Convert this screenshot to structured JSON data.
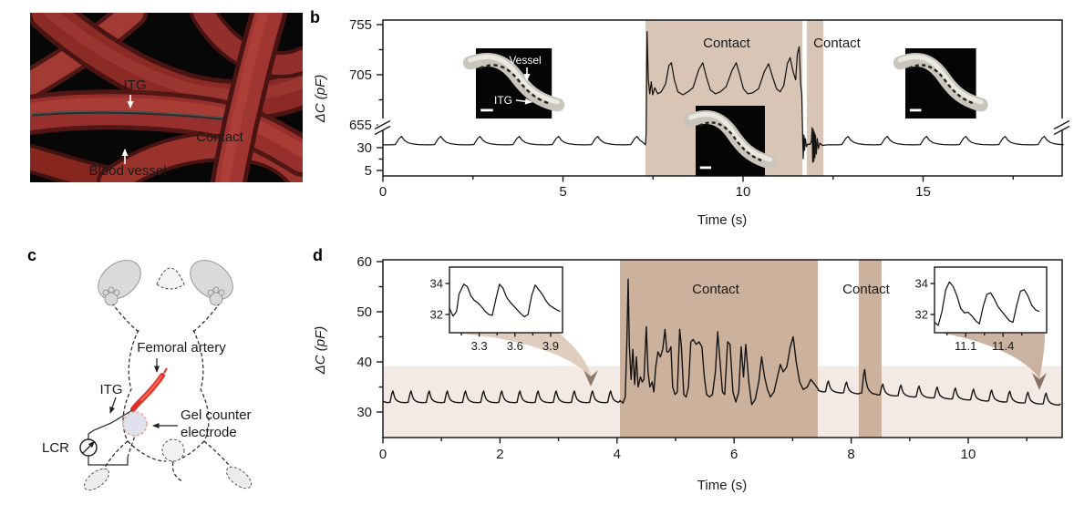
{
  "panels": {
    "a": {
      "letter": "a",
      "itg": "ITG",
      "contact": "Contact",
      "blood_vessel": "Blood vessel"
    },
    "b": {
      "letter": "b",
      "inset_vessel": "Vessel",
      "inset_itg": "ITG"
    },
    "c": {
      "letter": "c",
      "femoral_artery": "Femoral artery",
      "itg": "ITG",
      "gel_line1": "Gel counter",
      "gel_line2": "electrode",
      "lcr": "LCR"
    },
    "d": {
      "letter": "d"
    }
  },
  "colors": {
    "contact_fill_b": "#d9c5b5",
    "contact_fill_d": "#ccb19d",
    "band_fill": "#f3eae6",
    "wedge_left": "#dcc8b6",
    "wedge_right": "#c4ab96",
    "arrow_left": "#8e7a6a",
    "arrow_right": "#8a7363",
    "trace": "#141414",
    "contact_dot": "#dc8a3c"
  },
  "chart_data": [
    {
      "id": "b",
      "type": "line",
      "xlabel": "Time (s)",
      "ylabel": "ΔC (pF)",
      "units": "pF",
      "x_range": [
        0,
        18.9
      ],
      "x_major_ticks": [
        0,
        5,
        10,
        15
      ],
      "x_minor_ticks": [
        2.5,
        7.5,
        12.5,
        17.5
      ],
      "y_axis_break": true,
      "y_lower_ticks": [
        5,
        30
      ],
      "y_lower_minor_ticks": [
        17.5
      ],
      "y_upper_ticks": [
        655,
        705,
        755
      ],
      "y_upper_minor_ticks": [
        680,
        730
      ],
      "contact_regions_s": [
        [
          7.29,
          11.65
        ],
        [
          11.77,
          12.23
        ]
      ],
      "contact_labels": [
        "Contact",
        "Contact"
      ],
      "baseline_segments": [
        {
          "t0": 0,
          "t1": 7.29,
          "base": 32.8,
          "amp": 9.5,
          "period": 1.09,
          "first_peak": 0.55
        },
        {
          "t0": 12.35,
          "t1": 18.9,
          "base": 32.8,
          "amp": 9.5,
          "period": 1.09,
          "first_peak": 12.95
        }
      ],
      "event_trace": [
        [
          7.29,
          34
        ],
        [
          7.31,
          45
        ],
        [
          7.335,
          748
        ],
        [
          7.37,
          700
        ],
        [
          7.41,
          686
        ],
        [
          7.45,
          698
        ],
        [
          7.49,
          685
        ],
        [
          7.55,
          692
        ],
        [
          7.63,
          686
        ],
        [
          7.73,
          688
        ],
        [
          7.85,
          696
        ],
        [
          7.94,
          714
        ],
        [
          8.01,
          717
        ],
        [
          8.09,
          700
        ],
        [
          8.19,
          688
        ],
        [
          8.33,
          685
        ],
        [
          8.47,
          688
        ],
        [
          8.61,
          692
        ],
        [
          8.77,
          710
        ],
        [
          8.88,
          717
        ],
        [
          8.98,
          703
        ],
        [
          9.09,
          690
        ],
        [
          9.23,
          686
        ],
        [
          9.37,
          688
        ],
        [
          9.53,
          693
        ],
        [
          9.69,
          709
        ],
        [
          9.81,
          717
        ],
        [
          9.91,
          705
        ],
        [
          10.01,
          691
        ],
        [
          10.13,
          686
        ],
        [
          10.27,
          687
        ],
        [
          10.43,
          691
        ],
        [
          10.59,
          708
        ],
        [
          10.71,
          716
        ],
        [
          10.81,
          704
        ],
        [
          10.93,
          691
        ],
        [
          11.03,
          688
        ],
        [
          11.13,
          694
        ],
        [
          11.23,
          716
        ],
        [
          11.31,
          722
        ],
        [
          11.39,
          708
        ],
        [
          11.46,
          700
        ],
        [
          11.51,
          726
        ],
        [
          11.56,
          733
        ],
        [
          11.6,
          695
        ],
        [
          11.63,
          686
        ],
        [
          11.655,
          42
        ],
        [
          11.67,
          18
        ],
        [
          11.69,
          44
        ],
        [
          11.71,
          27
        ],
        [
          11.73,
          40
        ],
        [
          11.76,
          31
        ],
        [
          11.8,
          34
        ],
        [
          11.86,
          33.5
        ],
        [
          11.9,
          37
        ],
        [
          11.92,
          52
        ],
        [
          11.935,
          14
        ],
        [
          11.95,
          50
        ],
        [
          11.965,
          15
        ],
        [
          11.98,
          47
        ],
        [
          11.995,
          19
        ],
        [
          12.01,
          44
        ],
        [
          12.035,
          23
        ],
        [
          12.06,
          40
        ],
        [
          12.09,
          29
        ],
        [
          12.13,
          35
        ],
        [
          12.2,
          32.5
        ],
        [
          12.32,
          33
        ]
      ]
    },
    {
      "id": "d",
      "type": "line",
      "xlabel": "Time (s)",
      "ylabel": "ΔC (pF)",
      "units": "pF",
      "x_range": [
        0,
        11.6
      ],
      "x_major_ticks": [
        0,
        2,
        4,
        6,
        8,
        10
      ],
      "x_minor_ticks": [
        1,
        3,
        5,
        7,
        9,
        11
      ],
      "y_ticks": [
        30,
        40,
        50,
        60
      ],
      "y_minor_ticks": [
        35,
        45,
        55
      ],
      "y_range": [
        25,
        60
      ],
      "band_pF": [
        25,
        39.2
      ],
      "contact_regions_s": [
        [
          4.05,
          7.43
        ],
        [
          8.13,
          8.52
        ]
      ],
      "contact_labels": [
        "Contact",
        "Contact"
      ],
      "baseline_pre": {
        "t0": 0,
        "t1": 4.05,
        "base": 31.8,
        "amp": 2.4,
        "period": 0.31,
        "first_peak": 0.18
      },
      "contact_trace": [
        [
          4.05,
          32.3
        ],
        [
          4.1,
          31.8
        ],
        [
          4.14,
          33
        ],
        [
          4.17,
          45
        ],
        [
          4.19,
          56.5
        ],
        [
          4.21,
          43
        ],
        [
          4.24,
          36.5
        ],
        [
          4.27,
          42.5
        ],
        [
          4.3,
          35.5
        ],
        [
          4.33,
          41
        ],
        [
          4.36,
          35
        ],
        [
          4.4,
          37
        ],
        [
          4.43,
          36
        ],
        [
          4.46,
          36.5
        ],
        [
          4.5,
          47
        ],
        [
          4.53,
          38
        ],
        [
          4.56,
          35
        ],
        [
          4.6,
          36
        ],
        [
          4.63,
          34
        ],
        [
          4.66,
          39
        ],
        [
          4.7,
          42
        ],
        [
          4.74,
          41
        ],
        [
          4.78,
          42.5
        ],
        [
          4.82,
          46.5
        ],
        [
          4.85,
          42
        ],
        [
          4.88,
          42
        ],
        [
          4.92,
          43
        ],
        [
          4.95,
          35
        ],
        [
          4.99,
          33.5
        ],
        [
          5.03,
          34
        ],
        [
          5.07,
          46.5
        ],
        [
          5.1,
          43
        ],
        [
          5.14,
          33.5
        ],
        [
          5.18,
          33
        ],
        [
          5.22,
          35
        ],
        [
          5.26,
          44
        ],
        [
          5.3,
          44.5
        ],
        [
          5.35,
          43.5
        ],
        [
          5.4,
          44
        ],
        [
          5.45,
          43
        ],
        [
          5.49,
          37
        ],
        [
          5.53,
          33.5
        ],
        [
          5.58,
          33
        ],
        [
          5.63,
          33.5
        ],
        [
          5.68,
          38
        ],
        [
          5.72,
          46
        ],
        [
          5.76,
          40
        ],
        [
          5.8,
          34
        ],
        [
          5.84,
          33.5
        ],
        [
          5.89,
          44
        ],
        [
          5.93,
          43.5
        ],
        [
          5.98,
          34
        ],
        [
          6.03,
          32
        ],
        [
          6.08,
          34
        ],
        [
          6.12,
          43
        ],
        [
          6.16,
          37
        ],
        [
          6.2,
          43.5
        ],
        [
          6.25,
          36
        ],
        [
          6.3,
          31.5
        ],
        [
          6.36,
          32.5
        ],
        [
          6.42,
          36
        ],
        [
          6.47,
          41
        ],
        [
          6.52,
          37
        ],
        [
          6.57,
          34.5
        ],
        [
          6.62,
          33
        ],
        [
          6.68,
          34
        ],
        [
          6.74,
          37
        ],
        [
          6.79,
          39.5
        ],
        [
          6.84,
          38
        ],
        [
          6.9,
          39
        ],
        [
          6.96,
          43
        ],
        [
          7.01,
          45
        ],
        [
          7.06,
          40
        ],
        [
          7.12,
          36
        ],
        [
          7.18,
          34.5
        ],
        [
          7.25,
          35
        ],
        [
          7.31,
          36.5
        ],
        [
          7.38,
          35.5
        ],
        [
          7.44,
          34.5
        ]
      ],
      "baseline_post": {
        "t0": 7.44,
        "t1": 11.58,
        "base_start": 34.0,
        "base_end": 31.3,
        "amp": 2.3,
        "period": 0.31,
        "first_peak": 7.62,
        "specials": [
          {
            "t": 8.24,
            "amp": 5.0
          }
        ]
      },
      "insets": [
        {
          "y_ticks": [
            34,
            32
          ],
          "x_ticks": [
            3.3,
            3.6,
            3.9
          ],
          "x_minor_ticks": [
            3.15,
            3.45,
            3.75
          ],
          "points": [
            [
              3.05,
              32.4
            ],
            [
              3.08,
              31.9
            ],
            [
              3.11,
              32.2
            ],
            [
              3.13,
              33.3
            ],
            [
              3.17,
              33.95
            ],
            [
              3.2,
              33.8
            ],
            [
              3.23,
              33.2
            ],
            [
              3.26,
              32.9
            ],
            [
              3.29,
              32.75
            ],
            [
              3.32,
              32.5
            ],
            [
              3.35,
              32.2
            ],
            [
              3.38,
              32.0
            ],
            [
              3.41,
              31.95
            ],
            [
              3.44,
              33.0
            ],
            [
              3.47,
              33.95
            ],
            [
              3.5,
              33.7
            ],
            [
              3.53,
              33.1
            ],
            [
              3.56,
              32.8
            ],
            [
              3.59,
              32.55
            ],
            [
              3.62,
              32.3
            ],
            [
              3.65,
              32.05
            ],
            [
              3.68,
              31.85
            ],
            [
              3.71,
              32.0
            ],
            [
              3.74,
              33.2
            ],
            [
              3.77,
              33.9
            ],
            [
              3.8,
              33.6
            ],
            [
              3.83,
              33.3
            ],
            [
              3.86,
              32.9
            ],
            [
              3.89,
              32.6
            ],
            [
              3.92,
              32.45
            ],
            [
              3.95,
              32.3
            ],
            [
              3.98,
              32.2
            ]
          ]
        },
        {
          "y_ticks": [
            34,
            32
          ],
          "x_ticks": [
            11.1,
            11.4
          ],
          "x_minor_ticks": [
            10.95,
            11.25,
            11.55
          ],
          "points": [
            [
              10.85,
              31.5
            ],
            [
              10.88,
              31.3
            ],
            [
              10.91,
              32.2
            ],
            [
              10.94,
              33.6
            ],
            [
              10.97,
              34.1
            ],
            [
              11.0,
              33.8
            ],
            [
              11.03,
              33.2
            ],
            [
              11.06,
              32.4
            ],
            [
              11.09,
              32.1
            ],
            [
              11.12,
              32.15
            ],
            [
              11.15,
              31.9
            ],
            [
              11.18,
              31.6
            ],
            [
              11.21,
              31.4
            ],
            [
              11.24,
              32.5
            ],
            [
              11.27,
              33.3
            ],
            [
              11.3,
              33.4
            ],
            [
              11.33,
              33.0
            ],
            [
              11.36,
              32.5
            ],
            [
              11.39,
              32.2
            ],
            [
              11.42,
              31.9
            ],
            [
              11.45,
              31.6
            ],
            [
              11.48,
              31.5
            ],
            [
              11.51,
              32.6
            ],
            [
              11.54,
              33.5
            ],
            [
              11.57,
              33.6
            ],
            [
              11.6,
              33.2
            ],
            [
              11.63,
              32.6
            ],
            [
              11.66,
              32.3
            ],
            [
              11.69,
              32.2
            ]
          ]
        }
      ]
    }
  ]
}
